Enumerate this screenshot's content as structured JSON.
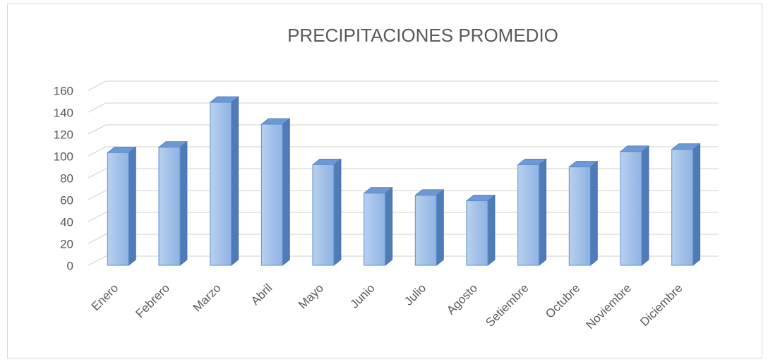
{
  "chart_data": {
    "type": "bar3d",
    "title": "PRECIPITACIONES PROMEDIO",
    "categories": [
      "Enero",
      "Febrero",
      "Marzo",
      "Abril",
      "Mayo",
      "Junio",
      "Julio",
      "Agosto",
      "Setiembre",
      "Octubre",
      "Noviembre",
      "Diciembre"
    ],
    "values": [
      103,
      108,
      149,
      129,
      92,
      66,
      64,
      59,
      92,
      90,
      104,
      106
    ],
    "color": "#9dbfe8",
    "ylim": [
      0,
      160
    ],
    "yticks": [
      0,
      20,
      40,
      60,
      80,
      100,
      120,
      140,
      160
    ],
    "grid": true
  }
}
